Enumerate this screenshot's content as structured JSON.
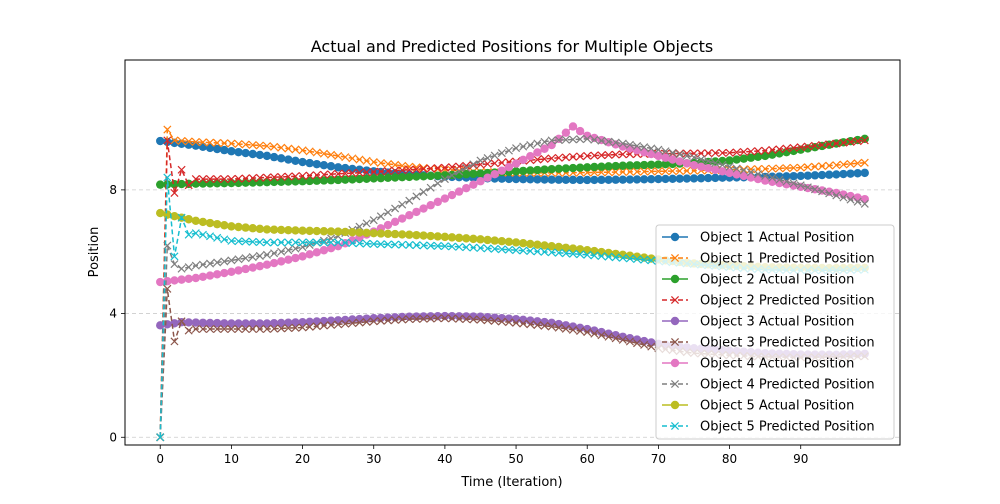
{
  "chart_data": {
    "type": "line",
    "title": "Actual and Predicted Positions for Multiple Objects",
    "xlabel": "Time (Iteration)",
    "ylabel": "Position",
    "xlim": [
      -4.95,
      103.95
    ],
    "ylim": [
      -0.25,
      12.2
    ],
    "xticks": [
      0,
      10,
      20,
      30,
      40,
      50,
      60,
      70,
      80,
      90
    ],
    "yticks": [
      0,
      4,
      8
    ],
    "grid": "y-dashed",
    "legend_position": "lower-right",
    "series": [
      {
        "name": "Object 1 Actual Position",
        "kind": "actual",
        "color": "#1f77b4",
        "knots": [
          [
            0,
            9.58
          ],
          [
            5,
            9.43
          ],
          [
            10,
            9.25
          ],
          [
            15,
            9.1
          ],
          [
            20,
            8.9
          ],
          [
            25,
            8.73
          ],
          [
            30,
            8.6
          ],
          [
            35,
            8.5
          ],
          [
            40,
            8.43
          ],
          [
            45,
            8.38
          ],
          [
            50,
            8.35
          ],
          [
            55,
            8.33
          ],
          [
            60,
            8.32
          ],
          [
            65,
            8.33
          ],
          [
            70,
            8.35
          ],
          [
            75,
            8.37
          ],
          [
            80,
            8.4
          ],
          [
            85,
            8.42
          ],
          [
            90,
            8.45
          ],
          [
            95,
            8.5
          ],
          [
            99,
            8.55
          ]
        ]
      },
      {
        "name": "Object 1 Predicted Position",
        "kind": "predicted",
        "color": "#ff7f0e",
        "knots": [
          [
            0,
            0
          ],
          [
            1,
            9.95
          ],
          [
            2,
            9.6
          ],
          [
            5,
            9.55
          ],
          [
            10,
            9.5
          ],
          [
            15,
            9.42
          ],
          [
            20,
            9.28
          ],
          [
            25,
            9.1
          ],
          [
            30,
            8.9
          ],
          [
            35,
            8.75
          ],
          [
            40,
            8.65
          ],
          [
            45,
            8.58
          ],
          [
            50,
            8.55
          ],
          [
            55,
            8.55
          ],
          [
            60,
            8.56
          ],
          [
            65,
            8.58
          ],
          [
            70,
            8.6
          ],
          [
            75,
            8.62
          ],
          [
            80,
            8.65
          ],
          [
            85,
            8.68
          ],
          [
            90,
            8.72
          ],
          [
            95,
            8.8
          ],
          [
            99,
            8.88
          ]
        ]
      },
      {
        "name": "Object 2 Actual Position",
        "kind": "actual",
        "color": "#2ca02c",
        "knots": [
          [
            0,
            8.17
          ],
          [
            5,
            8.2
          ],
          [
            10,
            8.22
          ],
          [
            15,
            8.25
          ],
          [
            20,
            8.28
          ],
          [
            25,
            8.32
          ],
          [
            30,
            8.37
          ],
          [
            35,
            8.42
          ],
          [
            40,
            8.47
          ],
          [
            45,
            8.53
          ],
          [
            50,
            8.6
          ],
          [
            55,
            8.67
          ],
          [
            60,
            8.73
          ],
          [
            65,
            8.78
          ],
          [
            70,
            8.82
          ],
          [
            75,
            8.87
          ],
          [
            80,
            8.95
          ],
          [
            85,
            9.1
          ],
          [
            90,
            9.3
          ],
          [
            95,
            9.5
          ],
          [
            99,
            9.65
          ]
        ]
      },
      {
        "name": "Object 2 Predicted Position",
        "kind": "predicted",
        "color": "#d62728",
        "knots": [
          [
            0,
            0
          ],
          [
            1,
            9.6
          ],
          [
            2,
            7.9
          ],
          [
            3,
            8.65
          ],
          [
            4,
            8.15
          ],
          [
            5,
            8.35
          ],
          [
            10,
            8.35
          ],
          [
            15,
            8.4
          ],
          [
            20,
            8.45
          ],
          [
            25,
            8.52
          ],
          [
            30,
            8.58
          ],
          [
            35,
            8.65
          ],
          [
            40,
            8.72
          ],
          [
            45,
            8.82
          ],
          [
            50,
            8.92
          ],
          [
            55,
            9.02
          ],
          [
            60,
            9.1
          ],
          [
            65,
            9.15
          ],
          [
            70,
            9.17
          ],
          [
            75,
            9.18
          ],
          [
            80,
            9.2
          ],
          [
            85,
            9.27
          ],
          [
            90,
            9.38
          ],
          [
            95,
            9.5
          ],
          [
            99,
            9.6
          ]
        ]
      },
      {
        "name": "Object 3 Actual Position",
        "kind": "actual",
        "color": "#9467bd",
        "knots": [
          [
            0,
            3.62
          ],
          [
            3,
            3.72
          ],
          [
            10,
            3.68
          ],
          [
            15,
            3.68
          ],
          [
            20,
            3.72
          ],
          [
            25,
            3.78
          ],
          [
            30,
            3.85
          ],
          [
            35,
            3.9
          ],
          [
            40,
            3.92
          ],
          [
            45,
            3.9
          ],
          [
            50,
            3.82
          ],
          [
            55,
            3.7
          ],
          [
            60,
            3.5
          ],
          [
            65,
            3.25
          ],
          [
            70,
            3.02
          ],
          [
            75,
            2.88
          ],
          [
            80,
            2.8
          ],
          [
            85,
            2.72
          ],
          [
            90,
            2.68
          ],
          [
            95,
            2.67
          ],
          [
            99,
            2.7
          ]
        ]
      },
      {
        "name": "Object 3 Predicted Position",
        "kind": "predicted",
        "color": "#8c564b",
        "knots": [
          [
            0,
            0
          ],
          [
            1,
            4.8
          ],
          [
            2,
            3.1
          ],
          [
            3,
            3.75
          ],
          [
            4,
            3.45
          ],
          [
            5,
            3.5
          ],
          [
            10,
            3.5
          ],
          [
            15,
            3.5
          ],
          [
            20,
            3.55
          ],
          [
            25,
            3.65
          ],
          [
            30,
            3.75
          ],
          [
            35,
            3.82
          ],
          [
            40,
            3.85
          ],
          [
            45,
            3.8
          ],
          [
            50,
            3.7
          ],
          [
            55,
            3.58
          ],
          [
            60,
            3.4
          ],
          [
            65,
            3.15
          ],
          [
            70,
            2.88
          ],
          [
            75,
            2.72
          ],
          [
            80,
            2.65
          ],
          [
            85,
            2.6
          ],
          [
            90,
            2.58
          ],
          [
            95,
            2.6
          ],
          [
            99,
            2.62
          ]
        ]
      },
      {
        "name": "Object 4 Actual Position",
        "kind": "actual",
        "color": "#e377c2",
        "knots": [
          [
            0,
            5.02
          ],
          [
            5,
            5.15
          ],
          [
            10,
            5.35
          ],
          [
            15,
            5.58
          ],
          [
            20,
            5.85
          ],
          [
            25,
            6.18
          ],
          [
            30,
            6.65
          ],
          [
            35,
            7.18
          ],
          [
            40,
            7.72
          ],
          [
            45,
            8.28
          ],
          [
            50,
            8.85
          ],
          [
            55,
            9.45
          ],
          [
            58,
            10.05
          ],
          [
            60,
            9.75
          ],
          [
            65,
            9.4
          ],
          [
            70,
            9.1
          ],
          [
            75,
            8.8
          ],
          [
            80,
            8.55
          ],
          [
            85,
            8.3
          ],
          [
            90,
            8.1
          ],
          [
            95,
            7.9
          ],
          [
            99,
            7.7
          ]
        ]
      },
      {
        "name": "Object 4 Predicted Position",
        "kind": "predicted",
        "color": "#7f7f7f",
        "knots": [
          [
            0,
            0
          ],
          [
            1,
            6.2
          ],
          [
            2,
            5.6
          ],
          [
            3,
            5.45
          ],
          [
            5,
            5.55
          ],
          [
            10,
            5.72
          ],
          [
            15,
            5.9
          ],
          [
            20,
            6.15
          ],
          [
            25,
            6.5
          ],
          [
            30,
            7.02
          ],
          [
            35,
            7.65
          ],
          [
            40,
            8.35
          ],
          [
            45,
            8.95
          ],
          [
            50,
            9.35
          ],
          [
            55,
            9.6
          ],
          [
            60,
            9.65
          ],
          [
            65,
            9.5
          ],
          [
            70,
            9.3
          ],
          [
            75,
            9.05
          ],
          [
            80,
            8.75
          ],
          [
            85,
            8.45
          ],
          [
            90,
            8.15
          ],
          [
            95,
            7.82
          ],
          [
            99,
            7.55
          ]
        ]
      },
      {
        "name": "Object 5 Actual Position",
        "kind": "actual",
        "color": "#bcbd22",
        "knots": [
          [
            0,
            7.25
          ],
          [
            5,
            7.0
          ],
          [
            10,
            6.82
          ],
          [
            15,
            6.72
          ],
          [
            20,
            6.68
          ],
          [
            25,
            6.65
          ],
          [
            30,
            6.6
          ],
          [
            35,
            6.55
          ],
          [
            40,
            6.48
          ],
          [
            45,
            6.4
          ],
          [
            50,
            6.3
          ],
          [
            55,
            6.18
          ],
          [
            60,
            6.05
          ],
          [
            65,
            5.9
          ],
          [
            70,
            5.75
          ],
          [
            75,
            5.62
          ],
          [
            80,
            5.55
          ],
          [
            85,
            5.5
          ],
          [
            90,
            5.48
          ],
          [
            95,
            5.47
          ],
          [
            99,
            5.48
          ]
        ]
      },
      {
        "name": "Object 5 Predicted Position",
        "kind": "predicted",
        "color": "#17becf",
        "knots": [
          [
            0,
            0
          ],
          [
            1,
            8.4
          ],
          [
            2,
            5.85
          ],
          [
            3,
            7.1
          ],
          [
            4,
            6.55
          ],
          [
            5,
            6.6
          ],
          [
            10,
            6.35
          ],
          [
            15,
            6.3
          ],
          [
            20,
            6.3
          ],
          [
            25,
            6.3
          ],
          [
            30,
            6.25
          ],
          [
            35,
            6.22
          ],
          [
            40,
            6.18
          ],
          [
            45,
            6.12
          ],
          [
            50,
            6.05
          ],
          [
            55,
            5.98
          ],
          [
            60,
            5.9
          ],
          [
            65,
            5.8
          ],
          [
            70,
            5.7
          ],
          [
            75,
            5.6
          ],
          [
            80,
            5.5
          ],
          [
            85,
            5.42
          ],
          [
            90,
            5.4
          ],
          [
            95,
            5.4
          ],
          [
            99,
            5.42
          ]
        ]
      }
    ]
  }
}
